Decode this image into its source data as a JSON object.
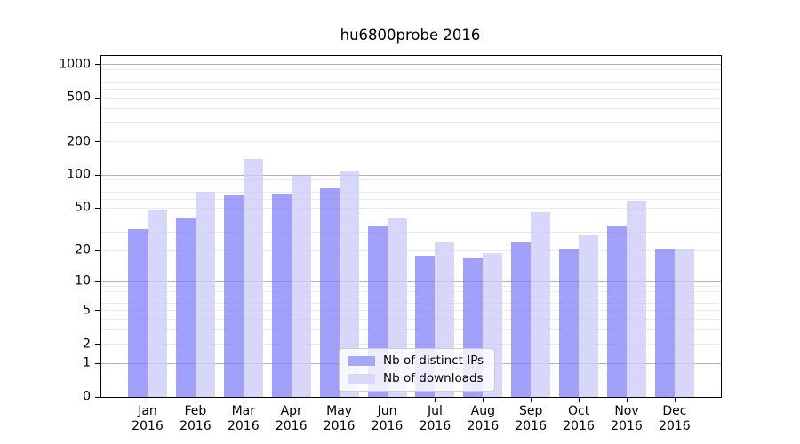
{
  "title": "hu6800probe 2016",
  "colors": {
    "bar_ips": "rgba(125, 125, 250, 0.72)",
    "bar_downloads": "rgba(205, 205, 249, 0.80)",
    "bar_ips_solid": "#a6a6fb",
    "bar_downloads_solid": "#d8d8fa",
    "grid_major": "#b4b4b4",
    "grid_minor": "#ebebeb",
    "frame": "#000000",
    "legend_border": "#cccccc"
  },
  "chart_data": {
    "type": "bar",
    "title": "hu6800probe 2016",
    "categories": [
      "Jan",
      "Feb",
      "Mar",
      "Apr",
      "May",
      "Jun",
      "Jul",
      "Aug",
      "Sep",
      "Oct",
      "Nov",
      "Dec"
    ],
    "x_year": "2016",
    "series": [
      {
        "name": "Nb of distinct IPs",
        "color_key": "bar_ips",
        "values": [
          32,
          41,
          65,
          68,
          75,
          34,
          18,
          17,
          24,
          21,
          34,
          21
        ]
      },
      {
        "name": "Nb of downloads",
        "color_key": "bar_downloads",
        "values": [
          48,
          70,
          140,
          98,
          108,
          40,
          24,
          19,
          46,
          28,
          58,
          21
        ]
      }
    ],
    "yscale": "log1p",
    "ylim": [
      0,
      1200
    ],
    "y_ticks": [
      0,
      1,
      2,
      5,
      10,
      20,
      50,
      100,
      200,
      500,
      1000
    ],
    "y_major_gridlines": [
      1,
      10,
      100,
      1000
    ],
    "y_minor_gridlines": [
      2,
      3,
      4,
      5,
      6,
      7,
      8,
      9,
      20,
      30,
      40,
      50,
      60,
      70,
      80,
      90,
      200,
      300,
      400,
      500,
      600,
      700,
      800,
      900
    ],
    "grid": "on",
    "legend_position": "lower center inside",
    "xlabel": "",
    "ylabel": ""
  }
}
